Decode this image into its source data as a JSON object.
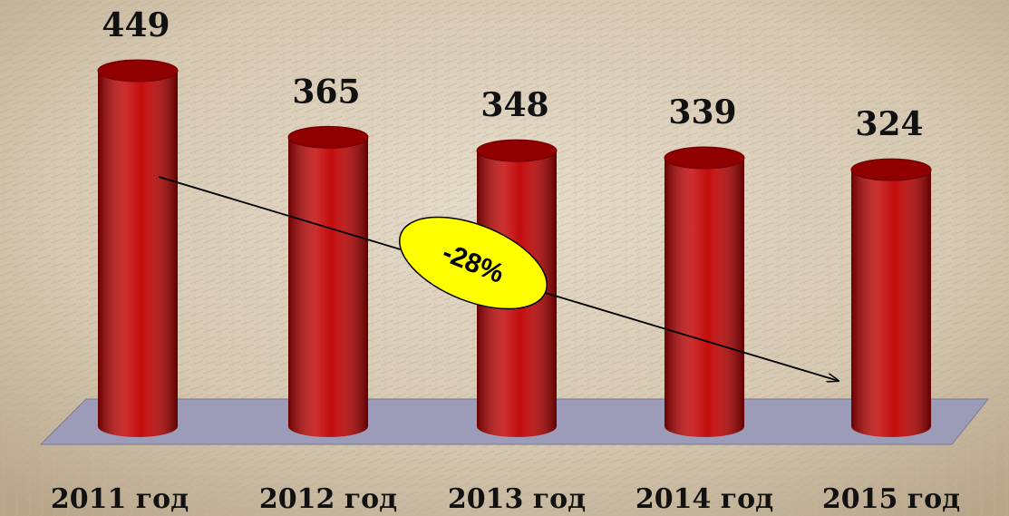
{
  "chart_data": {
    "type": "bar",
    "categories": [
      "2011 год",
      "2012 год",
      "2013 год",
      "2014 год",
      "2015 год"
    ],
    "values": [
      449,
      365,
      348,
      339,
      324
    ],
    "color": "#c00000",
    "annotation": "-28%"
  }
}
